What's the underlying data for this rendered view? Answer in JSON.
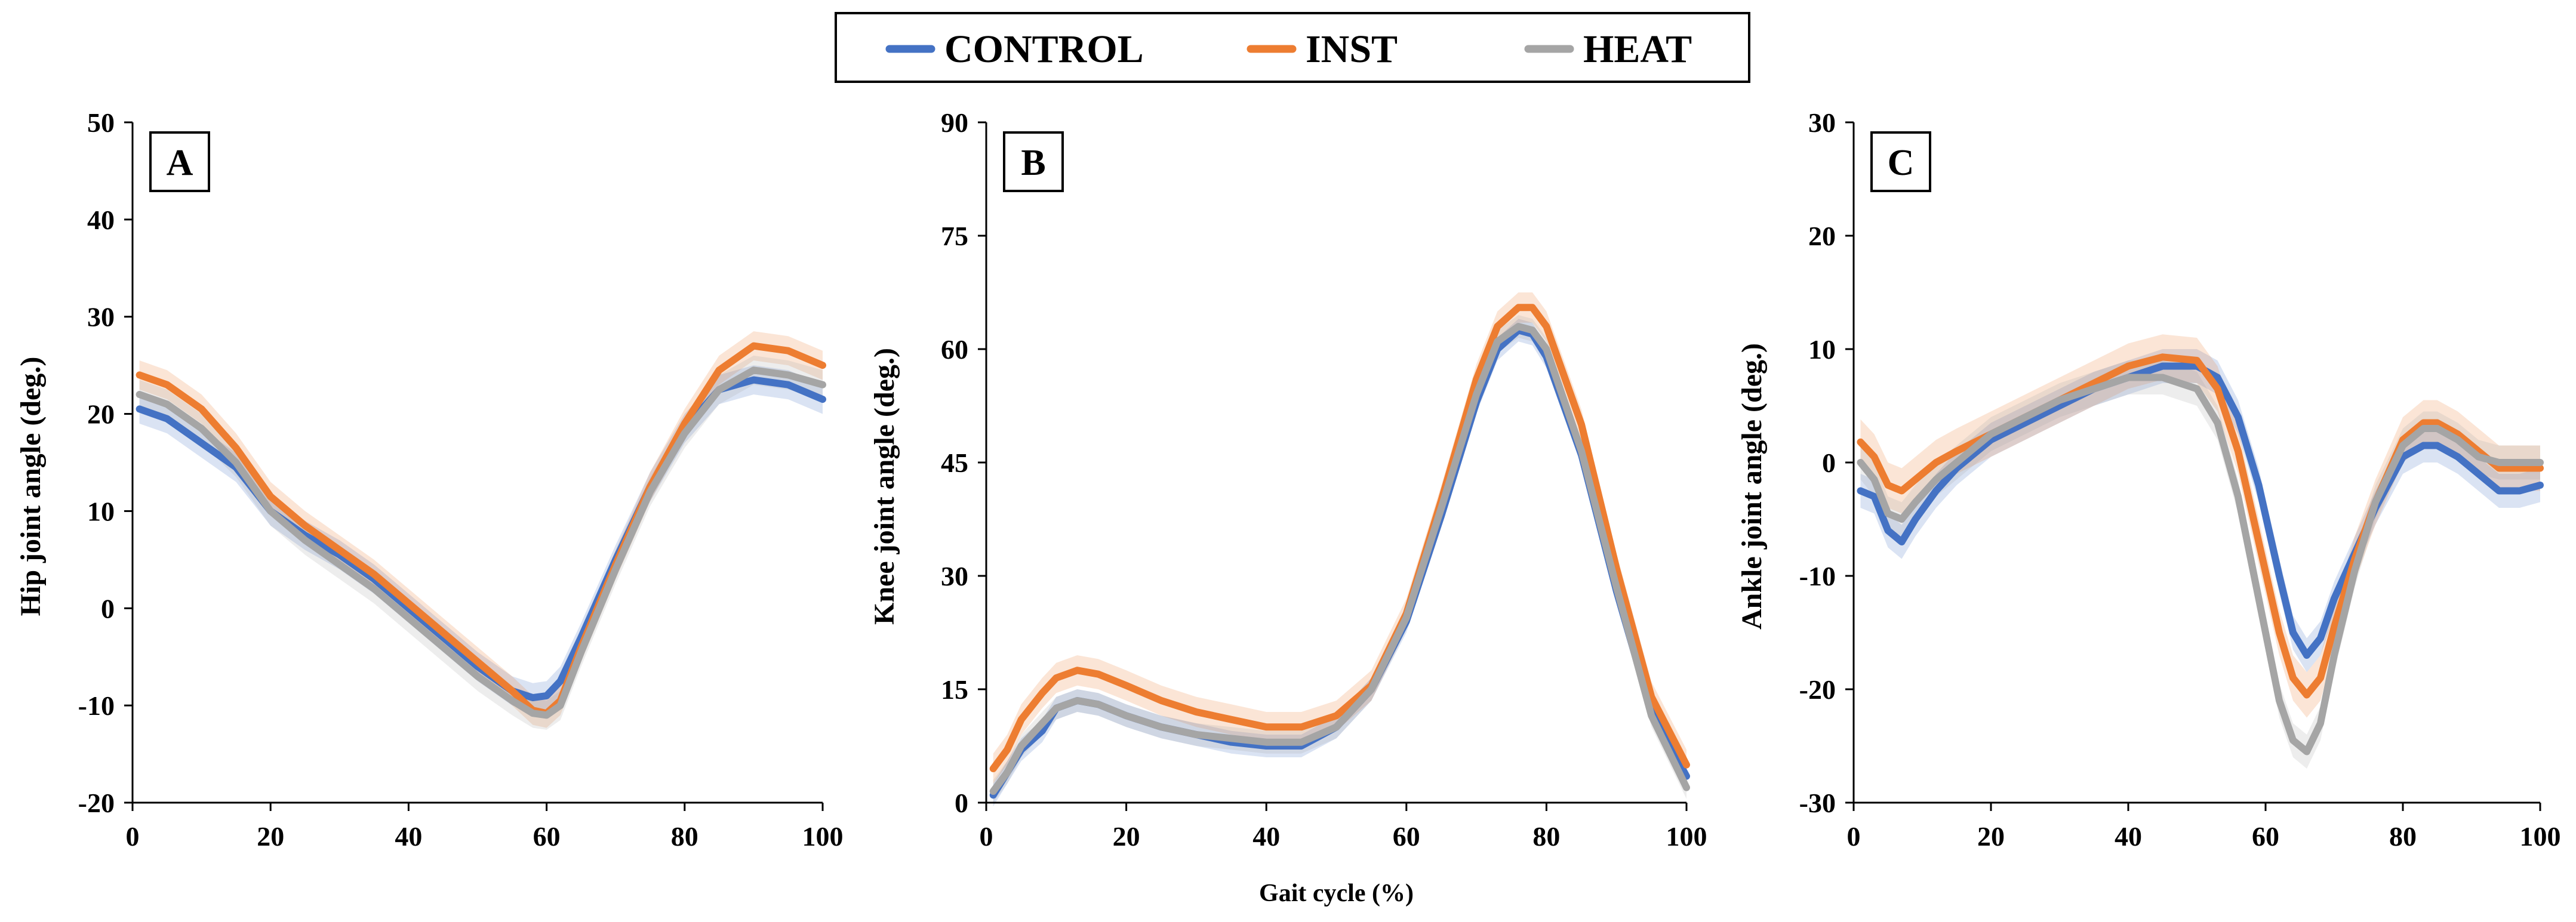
{
  "legend": {
    "items": [
      {
        "name": "CONTROL",
        "color": "#4472c4"
      },
      {
        "name": "INST",
        "color": "#ed7d31"
      },
      {
        "name": "HEAT",
        "color": "#a5a5a5"
      }
    ]
  },
  "chart_data": [
    {
      "type": "line",
      "panel_label": "A",
      "title": "",
      "xlabel": "",
      "ylabel": "Hip joint angle (deg.)",
      "xlim": [
        0,
        100
      ],
      "ylim": [
        -20,
        50
      ],
      "xticks": [
        "0",
        "20",
        "40",
        "60",
        "80",
        "100"
      ],
      "yticks": [
        "-20",
        "-10",
        "0",
        "10",
        "20",
        "30",
        "40",
        "50"
      ],
      "x": [
        1,
        5,
        10,
        15,
        20,
        25,
        30,
        35,
        40,
        45,
        50,
        55,
        58,
        60,
        62,
        65,
        70,
        75,
        80,
        85,
        90,
        95,
        100
      ],
      "series": [
        {
          "name": "CONTROL",
          "sd": 1.5,
          "values": [
            20.5,
            19.5,
            17.0,
            14.5,
            10.0,
            7.5,
            5.5,
            3.0,
            0.0,
            -3.0,
            -6.0,
            -8.5,
            -9.2,
            -9.0,
            -7.5,
            -3.0,
            5.0,
            12.5,
            18.5,
            22.5,
            23.5,
            23.0,
            21.5
          ]
        },
        {
          "name": "INST",
          "sd": 1.5,
          "values": [
            24.0,
            23.0,
            20.5,
            16.5,
            11.5,
            8.5,
            6.0,
            3.5,
            0.5,
            -2.5,
            -5.5,
            -8.5,
            -10.5,
            -10.8,
            -9.5,
            -4.0,
            4.5,
            12.5,
            19.0,
            24.5,
            27.0,
            26.5,
            25.0
          ]
        },
        {
          "name": "HEAT",
          "sd": 1.5,
          "values": [
            22.0,
            21.0,
            18.5,
            15.0,
            10.0,
            7.0,
            4.5,
            2.0,
            -1.0,
            -4.0,
            -7.0,
            -9.5,
            -10.8,
            -11.0,
            -10.0,
            -4.5,
            4.0,
            12.0,
            18.0,
            22.5,
            24.5,
            24.0,
            23.0
          ]
        }
      ]
    },
    {
      "type": "line",
      "panel_label": "B",
      "title": "",
      "xlabel": "Gait cycle (%)",
      "ylabel": "Knee joint angle (deg.)",
      "xlim": [
        0,
        100
      ],
      "ylim": [
        0,
        90
      ],
      "xticks": [
        "0",
        "20",
        "40",
        "60",
        "80",
        "100"
      ],
      "yticks": [
        "0",
        "15",
        "30",
        "45",
        "60",
        "75",
        "90"
      ],
      "x": [
        1,
        3,
        5,
        8,
        10,
        13,
        16,
        20,
        25,
        30,
        35,
        40,
        45,
        50,
        55,
        60,
        65,
        70,
        73,
        76,
        78,
        80,
        85,
        90,
        95,
        100
      ],
      "series": [
        {
          "name": "CONTROL",
          "sd": 1.5,
          "values": [
            1.0,
            4.0,
            7.0,
            9.5,
            12.5,
            13.5,
            13.0,
            11.5,
            10.0,
            9.0,
            8.0,
            7.5,
            7.5,
            10.0,
            15.0,
            24.0,
            38.0,
            53.0,
            60.0,
            62.5,
            62.0,
            59.0,
            46.0,
            28.0,
            12.0,
            3.5
          ]
        },
        {
          "name": "INST",
          "sd": 2.0,
          "values": [
            4.5,
            7.0,
            11.0,
            14.5,
            16.5,
            17.5,
            17.0,
            15.5,
            13.5,
            12.0,
            11.0,
            10.0,
            10.0,
            11.5,
            15.5,
            25.0,
            40.0,
            56.0,
            63.0,
            65.5,
            65.5,
            63.0,
            50.0,
            31.0,
            14.0,
            5.0
          ]
        },
        {
          "name": "HEAT",
          "sd": 1.5,
          "values": [
            1.5,
            4.0,
            7.5,
            10.5,
            12.5,
            13.5,
            13.0,
            11.5,
            10.0,
            9.0,
            8.5,
            8.0,
            8.0,
            10.0,
            15.0,
            24.5,
            39.0,
            54.0,
            61.0,
            63.0,
            62.5,
            60.0,
            46.5,
            28.5,
            11.5,
            2.0
          ]
        }
      ]
    },
    {
      "type": "line",
      "panel_label": "C",
      "title": "",
      "xlabel": "",
      "ylabel": "Ankle joint angle (deg.)",
      "xlim": [
        0,
        100
      ],
      "ylim": [
        -30,
        30
      ],
      "xticks": [
        "0",
        "20",
        "40",
        "60",
        "80",
        "100"
      ],
      "yticks": [
        "-30",
        "-20",
        "-10",
        "0",
        "10",
        "20",
        "30"
      ],
      "x": [
        1,
        3,
        5,
        7,
        9,
        12,
        15,
        20,
        25,
        30,
        35,
        40,
        45,
        50,
        53,
        56,
        59,
        62,
        64,
        66,
        68,
        70,
        73,
        76,
        80,
        83,
        85,
        88,
        91,
        94,
        97,
        100
      ],
      "series": [
        {
          "name": "CONTROL",
          "sd": 1.5,
          "values": [
            -2.5,
            -3.0,
            -6.0,
            -7.0,
            -5.0,
            -2.5,
            -0.5,
            2.0,
            3.5,
            5.0,
            6.5,
            7.5,
            8.5,
            8.5,
            7.5,
            4.0,
            -2.0,
            -10.0,
            -15.0,
            -17.0,
            -15.5,
            -12.0,
            -8.0,
            -4.0,
            0.5,
            1.5,
            1.5,
            0.5,
            -1.0,
            -2.5,
            -2.5,
            -2.0
          ]
        },
        {
          "name": "INST",
          "sd": 2.0,
          "values": [
            1.8,
            0.5,
            -2.0,
            -2.5,
            -1.5,
            0.0,
            1.0,
            2.5,
            4.0,
            5.5,
            7.0,
            8.5,
            9.3,
            9.0,
            6.5,
            1.0,
            -7.0,
            -15.0,
            -19.0,
            -20.5,
            -19.0,
            -14.5,
            -8.5,
            -3.5,
            2.0,
            3.5,
            3.5,
            2.5,
            1.0,
            -0.5,
            -0.5,
            -0.5
          ]
        },
        {
          "name": "HEAT",
          "sd": 1.5,
          "values": [
            0.0,
            -1.5,
            -4.5,
            -5.0,
            -3.5,
            -1.5,
            0.0,
            2.5,
            4.0,
            5.5,
            6.5,
            7.5,
            7.5,
            6.5,
            3.5,
            -3.0,
            -12.0,
            -21.0,
            -24.5,
            -25.5,
            -23.0,
            -17.0,
            -9.5,
            -3.5,
            1.5,
            3.0,
            3.0,
            2.0,
            0.5,
            0.0,
            0.0,
            0.0
          ]
        }
      ]
    }
  ]
}
